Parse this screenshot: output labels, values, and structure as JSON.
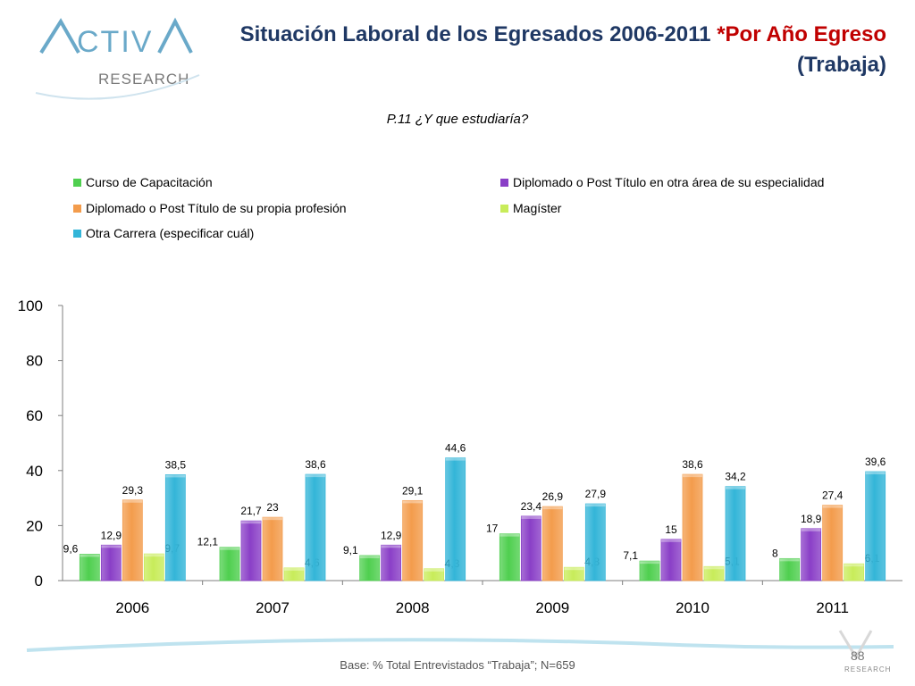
{
  "header": {
    "title_main": "Situación Laboral de los Egresados 2006-2011 ",
    "title_accent": "*Por Año Egreso",
    "title_line2": "(Trabaja)"
  },
  "logo": {
    "text": "ACTIVA RESEARCH",
    "color": "#6aa9c9"
  },
  "question": "P.11 ¿Y que estudiaría?",
  "footer": {
    "base": "Base: % Total Entrevistados “Trabaja”; N=659",
    "page": "88"
  },
  "colors": {
    "title": "#1f3864",
    "accent": "#c00000"
  },
  "chart_data": {
    "type": "bar",
    "categories": [
      "2006",
      "2007",
      "2008",
      "2009",
      "2010",
      "2011"
    ],
    "series": [
      {
        "name": "Curso de Capacitación",
        "color": "#4fcf4f",
        "values": [
          9.6,
          12.1,
          9.1,
          17,
          7.1,
          8
        ]
      },
      {
        "name": "Diplomado o Post Título en otra área de su especialidad",
        "color": "#8a3fc7",
        "values": [
          12.9,
          21.7,
          12.9,
          23.4,
          15,
          18.9
        ]
      },
      {
        "name": "Diplomado o Post Título de su propia profesión",
        "color": "#f39c4c",
        "values": [
          29.3,
          23,
          29.1,
          26.9,
          38.6,
          27.4
        ]
      },
      {
        "name": "Magíster",
        "color": "#c8ec5a",
        "values": [
          9.7,
          4.6,
          4.3,
          4.8,
          5.1,
          6.1
        ]
      },
      {
        "name": "Otra Carrera (especificar cuál)",
        "color": "#33b5d8",
        "values": [
          38.5,
          38.6,
          44.6,
          27.9,
          34.2,
          39.6
        ]
      }
    ],
    "labels": [
      [
        "9,6",
        "12,1",
        "9,1",
        "17",
        "7,1",
        "8"
      ],
      [
        "12,9",
        "21,7",
        "12,9",
        "23,4",
        "15",
        "18,9"
      ],
      [
        "29,3",
        "23",
        "29,1",
        "26,9",
        "38,6",
        "27,4"
      ],
      [
        "9,7",
        "4,6",
        "4,3",
        "4,8",
        "5,1",
        "6,1"
      ],
      [
        "38,5",
        "38,6",
        "44,6",
        "27,9",
        "34,2",
        "39,6"
      ]
    ],
    "ylim": [
      0,
      100
    ],
    "yticks": [
      "0",
      "20",
      "40",
      "60",
      "80",
      "100"
    ],
    "grid": false,
    "legend_position": "top"
  }
}
